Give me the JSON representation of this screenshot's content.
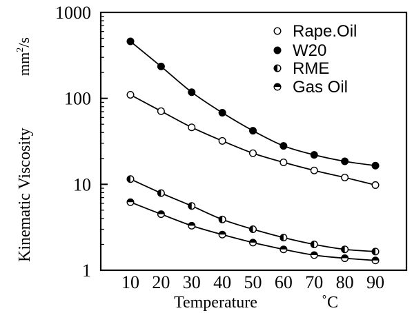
{
  "chart_data": {
    "type": "line",
    "xlabel": "Temperature",
    "xunit": "˚C",
    "ylabel": "Kinematic Viscosity",
    "yunit_main": "mm",
    "yunit_sup": "2",
    "yunit_tail": "/s",
    "yscale": "log",
    "ylim": [
      1,
      1000
    ],
    "xlim": [
      0,
      100
    ],
    "grid": false,
    "legend_position": "top-right",
    "x": [
      10,
      20,
      30,
      40,
      50,
      60,
      70,
      80,
      90
    ],
    "x_tick_labels": [
      "10",
      "20",
      "30",
      "40",
      "50",
      "60",
      "70",
      "80",
      "90"
    ],
    "y_ticks": [
      1,
      10,
      100,
      1000
    ],
    "y_tick_labels": [
      "1",
      "10",
      "100",
      "1000"
    ],
    "series": [
      {
        "name": "Rape.Oil",
        "marker": "open",
        "values": [
          110,
          71,
          46,
          32,
          23,
          18,
          14.5,
          12,
          9.8
        ]
      },
      {
        "name": "W20",
        "marker": "filled",
        "values": [
          460,
          235,
          118,
          68,
          42,
          28,
          22,
          18.5,
          16.5
        ]
      },
      {
        "name": "RME",
        "marker": "half-left",
        "values": [
          11.5,
          7.9,
          5.6,
          3.9,
          3.0,
          2.4,
          2.0,
          1.75,
          1.65
        ]
      },
      {
        "name": "Gas Oil",
        "marker": "half-top",
        "values": [
          6.2,
          4.5,
          3.3,
          2.6,
          2.1,
          1.75,
          1.5,
          1.38,
          1.3
        ]
      }
    ]
  }
}
